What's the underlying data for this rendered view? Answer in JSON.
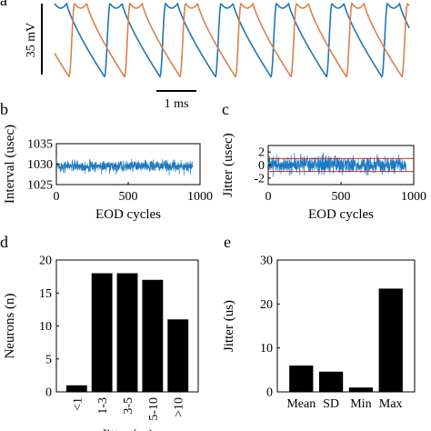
{
  "colors": {
    "blue": "#1f77b4",
    "orange": "#d9824a",
    "blue_noise": "#1f78c1",
    "red_line": "#d62728"
  },
  "panels": {
    "a": "a",
    "b": "b",
    "c": "c",
    "d": "d",
    "e": "e"
  },
  "chart_data": [
    {
      "id": "a",
      "type": "line",
      "scale_bar_y": "35 mV",
      "scale_bar_x": "1 ms",
      "series": [
        {
          "color": "#1f77b4",
          "period_ms": 0.97,
          "phase_ms": 0.0
        },
        {
          "color": "#d9824a",
          "period_ms": 0.97,
          "phase_ms": 0.35
        }
      ],
      "time_range_ms": [
        0,
        6.2
      ]
    },
    {
      "id": "b",
      "type": "line",
      "xlabel": "EOD cycles",
      "ylabel": "Interval (usec)",
      "xlim": [
        0,
        1000
      ],
      "ylim": [
        1025,
        1035
      ],
      "xticks": [
        "0",
        "500",
        "1000"
      ],
      "yticks": [
        "1025",
        "1030",
        "1035"
      ],
      "series_mean": 1029.5,
      "series_noise": 1.2,
      "n_points": 950
    },
    {
      "id": "c",
      "type": "line",
      "xlabel": "EOD cycles",
      "ylabel": "Jitter (usec)",
      "xlim": [
        0,
        1000
      ],
      "ylim": [
        -3,
        3
      ],
      "xticks": [
        "0",
        "500",
        "1000"
      ],
      "yticks": [
        "-2",
        "0",
        "2"
      ],
      "series_mean": 0,
      "series_noise": 1.2,
      "threshold_lines": [
        1,
        -1
      ],
      "n_points": 950
    },
    {
      "id": "d",
      "type": "bar",
      "xlabel": "Jitter (us)",
      "ylabel": "Neurons (n)",
      "categories": [
        "<1",
        "1-3",
        "3-5",
        "5-10",
        ">10"
      ],
      "values": [
        1,
        18,
        18,
        17,
        11
      ],
      "ylim": [
        0,
        20
      ],
      "yticks": [
        "0",
        "5",
        "10",
        "15",
        "20"
      ]
    },
    {
      "id": "e",
      "type": "bar",
      "ylabel": "Jitter (us)",
      "categories": [
        "Mean",
        "SD",
        "Min",
        "Max"
      ],
      "values": [
        6,
        4.6,
        1,
        23.5
      ],
      "ylim": [
        0,
        30
      ],
      "yticks": [
        "0",
        "10",
        "20",
        "30"
      ]
    }
  ]
}
